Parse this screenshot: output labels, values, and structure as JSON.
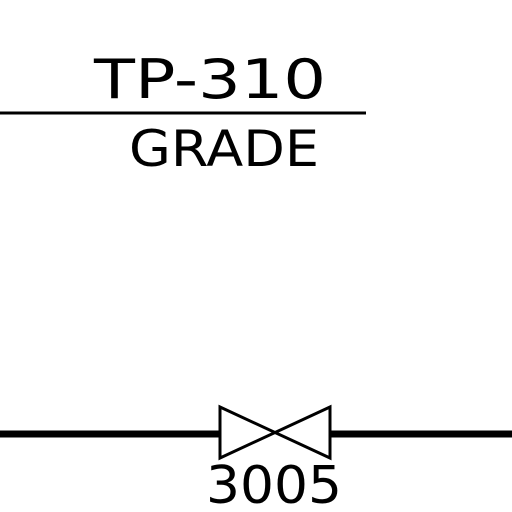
{
  "diagram": {
    "tag_number": "TP-310",
    "tag_sublabel": "GRADE",
    "valve_label": "3005",
    "line_color": "#000000",
    "background_color": "#ffffff",
    "valve_symbol": "gate-valve-icon"
  }
}
